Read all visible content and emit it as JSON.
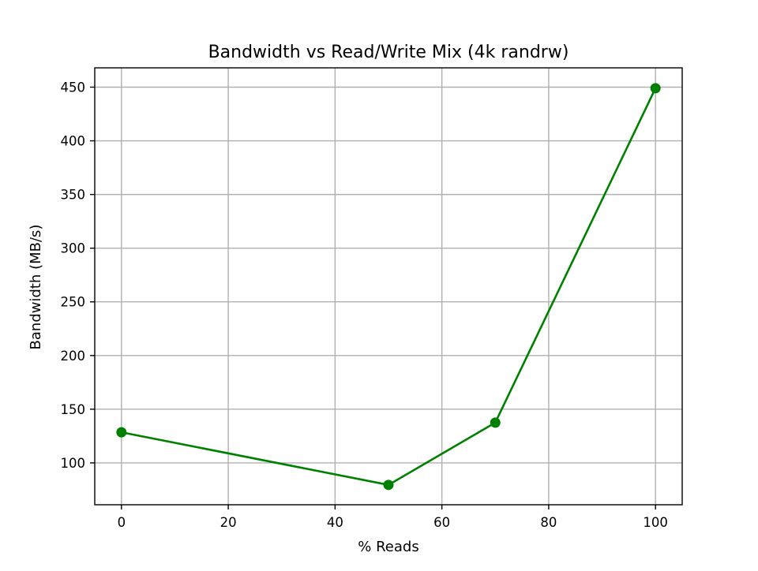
{
  "chart_data": {
    "type": "line",
    "title": "Bandwidth vs Read/Write Mix (4k randrw)",
    "xlabel": "% Reads",
    "ylabel": "Bandwidth (MB/s)",
    "xlim": [
      -5,
      105
    ],
    "ylim": [
      61,
      468
    ],
    "x_ticks": [
      0,
      20,
      40,
      60,
      80,
      100
    ],
    "y_ticks": [
      100,
      150,
      200,
      250,
      300,
      350,
      400,
      450
    ],
    "grid": true,
    "series": [
      {
        "color": "#008000",
        "marker": "circle",
        "x": [
          0,
          50,
          70,
          100
        ],
        "y": [
          128.5,
          79.5,
          137.5,
          449
        ]
      }
    ]
  }
}
